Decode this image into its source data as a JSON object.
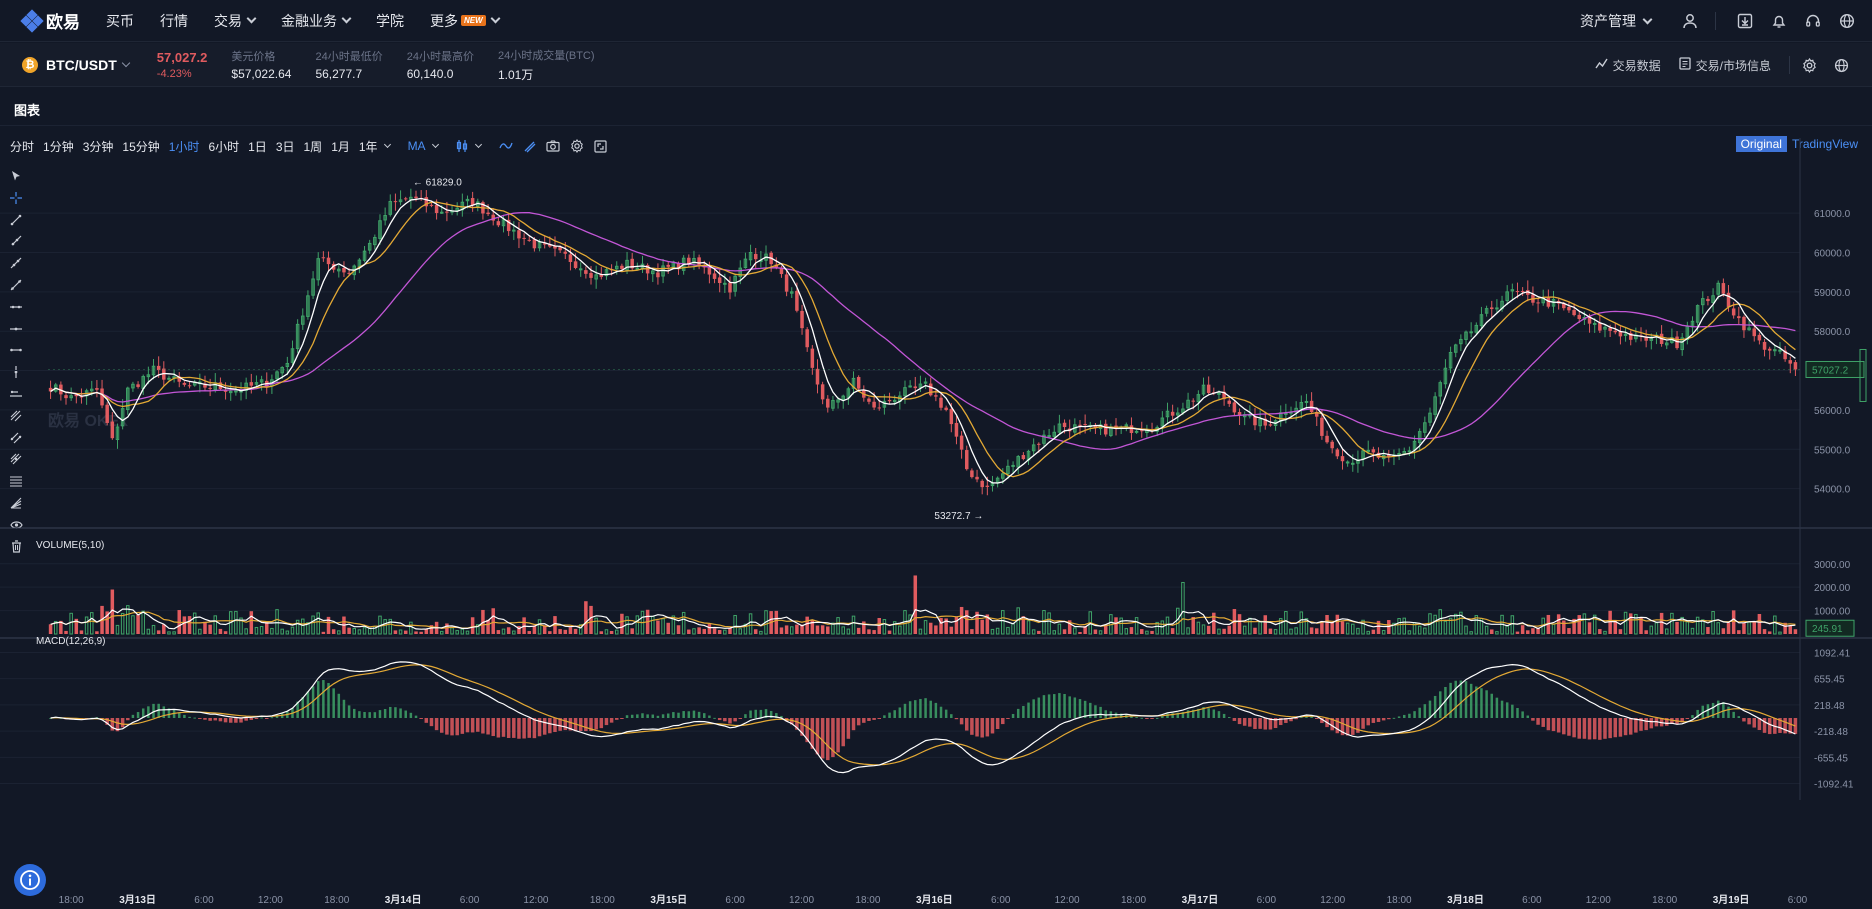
{
  "nav": {
    "logo_text": "欧易",
    "items": [
      {
        "label": "买币",
        "has_dropdown": false
      },
      {
        "label": "行情",
        "has_dropdown": false
      },
      {
        "label": "交易",
        "has_dropdown": true
      },
      {
        "label": "金融业务",
        "has_dropdown": true
      },
      {
        "label": "学院",
        "has_dropdown": false
      },
      {
        "label": "更多",
        "has_dropdown": true,
        "badge": "NEW"
      }
    ],
    "asset_label": "资产管理",
    "icons": [
      "user-icon",
      "download-icon",
      "bell-icon",
      "headset-icon",
      "globe-icon"
    ]
  },
  "ticker": {
    "coin_icon": "bitcoin-icon",
    "pair": "BTC/USDT",
    "price": "57,027.2",
    "change": "-4.23%",
    "stats": [
      {
        "label": "美元价格",
        "value": "$57,022.64"
      },
      {
        "label": "24小时最低价",
        "value": "56,277.7"
      },
      {
        "label": "24小时最高价",
        "value": "60,140.0"
      },
      {
        "label": "24小时成交量(BTC)",
        "value": "1.01万"
      }
    ],
    "right_links": [
      {
        "label": "交易数据",
        "icon": "trend-icon"
      },
      {
        "label": "交易/市场信息",
        "icon": "document-icon"
      }
    ]
  },
  "panel": {
    "title": "图表",
    "timeframes": [
      "分时",
      "1分钟",
      "3分钟",
      "15分钟",
      "1小时",
      "6小时",
      "1日",
      "3日",
      "1周",
      "1月",
      "1年"
    ],
    "active_timeframe": "1小时",
    "indicator": "MA",
    "view_original": "Original",
    "view_tradingview": "TradingView",
    "watermark": "欧易 OKEx"
  },
  "chart_data": [
    {
      "type": "candlestick",
      "title": "",
      "y_ticks": [
        "61000.0",
        "60000.0",
        "59000.0",
        "58000.0",
        "57000.0",
        "56000.0",
        "55000.0",
        "54000.0"
      ],
      "y_tick_values": [
        61000,
        60000,
        59000,
        58000,
        57000,
        56000,
        55000,
        54000
      ],
      "ylim": [
        53000,
        62400
      ],
      "current_price_label": "57027.2",
      "current_price": 57027.2,
      "high_marker": "61829.0",
      "low_marker": "53272.7",
      "x_tick_labels": [
        "18:00",
        "3月13日",
        "6:00",
        "12:00",
        "18:00",
        "3月14日",
        "6:00",
        "12:00",
        "18:00",
        "3月15日",
        "6:00",
        "12:00",
        "18:00",
        "3月16日",
        "6:00",
        "12:00",
        "18:00",
        "3月17日",
        "6:00",
        "12:00",
        "18:00",
        "3月18日",
        "6:00",
        "12:00",
        "18:00",
        "3月19日",
        "6:00"
      ],
      "close_keypoints": [
        [
          0,
          56600
        ],
        [
          4,
          56300
        ],
        [
          9,
          56500
        ],
        [
          12,
          55200
        ],
        [
          15,
          56500
        ],
        [
          20,
          57000
        ],
        [
          26,
          56600
        ],
        [
          32,
          56600
        ],
        [
          36,
          56500
        ],
        [
          42,
          56700
        ],
        [
          46,
          57200
        ],
        [
          52,
          59800
        ],
        [
          58,
          59500
        ],
        [
          62,
          60200
        ],
        [
          66,
          61200
        ],
        [
          70,
          61400
        ],
        [
          76,
          61000
        ],
        [
          82,
          61300
        ],
        [
          88,
          60700
        ],
        [
          94,
          60200
        ],
        [
          100,
          59900
        ],
        [
          106,
          59400
        ],
        [
          112,
          59700
        ],
        [
          118,
          59500
        ],
        [
          124,
          59800
        ],
        [
          128,
          59500
        ],
        [
          132,
          59100
        ],
        [
          136,
          60000
        ],
        [
          140,
          59800
        ],
        [
          144,
          58900
        ],
        [
          148,
          57000
        ],
        [
          151,
          56000
        ],
        [
          156,
          56700
        ],
        [
          160,
          56000
        ],
        [
          165,
          56400
        ],
        [
          170,
          56600
        ],
        [
          174,
          56000
        ],
        [
          178,
          54500
        ],
        [
          182,
          54000
        ],
        [
          186,
          54500
        ],
        [
          190,
          55000
        ],
        [
          196,
          55600
        ],
        [
          202,
          55500
        ],
        [
          208,
          55500
        ],
        [
          214,
          55600
        ],
        [
          220,
          56100
        ],
        [
          224,
          56500
        ],
        [
          228,
          56300
        ],
        [
          232,
          55800
        ],
        [
          236,
          55600
        ],
        [
          240,
          56000
        ],
        [
          244,
          56200
        ],
        [
          248,
          55200
        ],
        [
          252,
          54700
        ],
        [
          256,
          54900
        ],
        [
          260,
          54700
        ],
        [
          264,
          55000
        ],
        [
          268,
          55900
        ],
        [
          272,
          57400
        ],
        [
          276,
          58000
        ],
        [
          280,
          58600
        ],
        [
          284,
          59000
        ],
        [
          288,
          58800
        ],
        [
          292,
          58700
        ],
        [
          296,
          58400
        ],
        [
          300,
          58100
        ],
        [
          304,
          58000
        ],
        [
          308,
          57800
        ],
        [
          312,
          57800
        ],
        [
          316,
          57700
        ],
        [
          320,
          58600
        ],
        [
          324,
          59100
        ],
        [
          328,
          58300
        ],
        [
          332,
          57700
        ],
        [
          336,
          57400
        ],
        [
          339,
          57030
        ]
      ],
      "ma_periods": [
        5,
        10,
        30
      ],
      "ma_colors": [
        "#ffffff",
        "#e3a935",
        "#c256d6"
      ]
    },
    {
      "type": "bar",
      "title": "VOLUME(5,10)",
      "y_ticks": [
        "3000.00",
        "2000.00",
        "1000.00"
      ],
      "y_tick_values": [
        3000,
        2000,
        1000
      ],
      "ylim": [
        0,
        4100
      ],
      "current_label": "245.91",
      "current_value": 245.91
    },
    {
      "type": "bar",
      "title": "MACD(12,26,9)",
      "y_ticks": [
        "1092.41",
        "655.45",
        "218.48",
        "-218.48",
        "-655.45",
        "-1092.41"
      ],
      "y_tick_values": [
        1092.41,
        655.45,
        218.48,
        -218.48,
        -655.45,
        -1092.41
      ],
      "ylim": [
        -1200,
        1200
      ]
    }
  ],
  "colors": {
    "up": "#3fa368",
    "down": "#e05b5f",
    "accent": "#4b8ff5",
    "bg": "#121826"
  }
}
